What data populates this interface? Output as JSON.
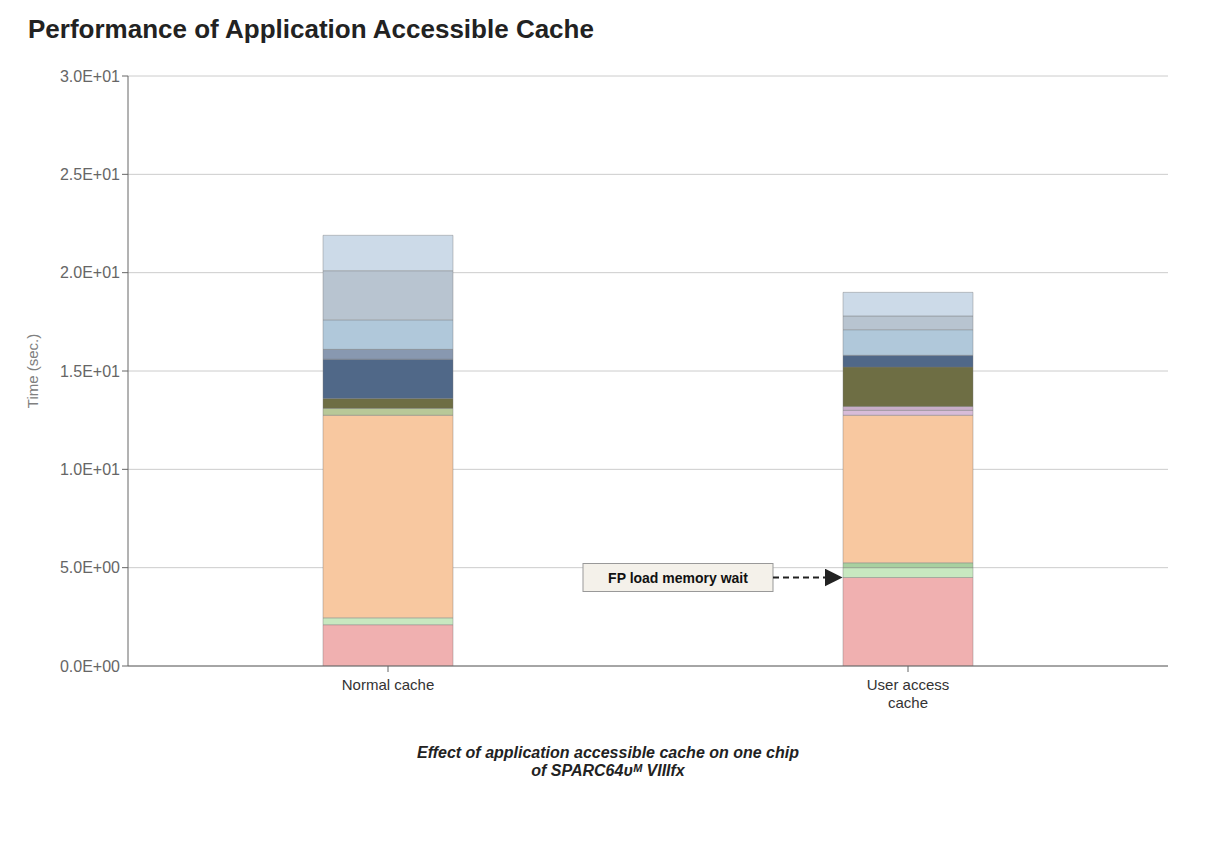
{
  "chart_data": {
    "type": "bar",
    "title": "Performance of Application Accessible Cache",
    "subtitle": "Effect of application accessible cache on one chip\nof SPARC64ᴜᴹ VIIIfx",
    "y_label": "Time  (sec.)",
    "categories": [
      "Normal cache",
      "User access\ncache"
    ],
    "stacked": true,
    "grid": true,
    "ylim": [
      0,
      30
    ],
    "yticks": [
      {
        "value": 0,
        "label": "0.0E+00"
      },
      {
        "value": 5,
        "label": "5.0E+00"
      },
      {
        "value": 10,
        "label": "1.0E+01"
      },
      {
        "value": 15,
        "label": "1.5E+01"
      },
      {
        "value": 20,
        "label": "2.0E+01"
      },
      {
        "value": 25,
        "label": "2.5E+01"
      },
      {
        "value": 30,
        "label": "3.0E+01"
      }
    ],
    "annotations": [
      "FP load memory wait"
    ],
    "series": [
      {
        "values": [
          2.1,
          4.5
        ],
        "colors": [
          "#f0b0b0",
          "#f0b0b0"
        ]
      },
      {
        "values": [
          0.35,
          0.5
        ],
        "colors": [
          "#c8e8c0",
          "#c8e8c0"
        ]
      },
      {
        "values": [
          10.3,
          0.25
        ],
        "colors": [
          "#f8c8a0",
          "#a8d0a0"
        ]
      },
      {
        "values": [
          0.35,
          7.5
        ],
        "colors": [
          "#b8c898",
          "#f8c8a0"
        ]
      },
      {
        "values": [
          0.5,
          0.25
        ],
        "colors": [
          "#6e6e44",
          "#d8bcd8"
        ]
      },
      {
        "values": [
          2.0,
          0.2
        ],
        "colors": [
          "#506888",
          "#c8aec8"
        ]
      },
      {
        "values": [
          0.5,
          2.0
        ],
        "colors": [
          "#8898b0",
          "#6e6e44"
        ]
      },
      {
        "values": [
          1.5,
          0.6
        ],
        "colors": [
          "#b0c8da",
          "#506888"
        ]
      },
      {
        "values": [
          2.5,
          1.3
        ],
        "colors": [
          "#b8c4d0",
          "#b0c8da"
        ]
      },
      {
        "values": [
          1.8,
          0.7
        ],
        "colors": [
          "#ccdae8",
          "#b8c4d0"
        ]
      },
      {
        "values": [
          null,
          1.2
        ],
        "colors": [
          null,
          "#ccdae8"
        ]
      }
    ]
  }
}
